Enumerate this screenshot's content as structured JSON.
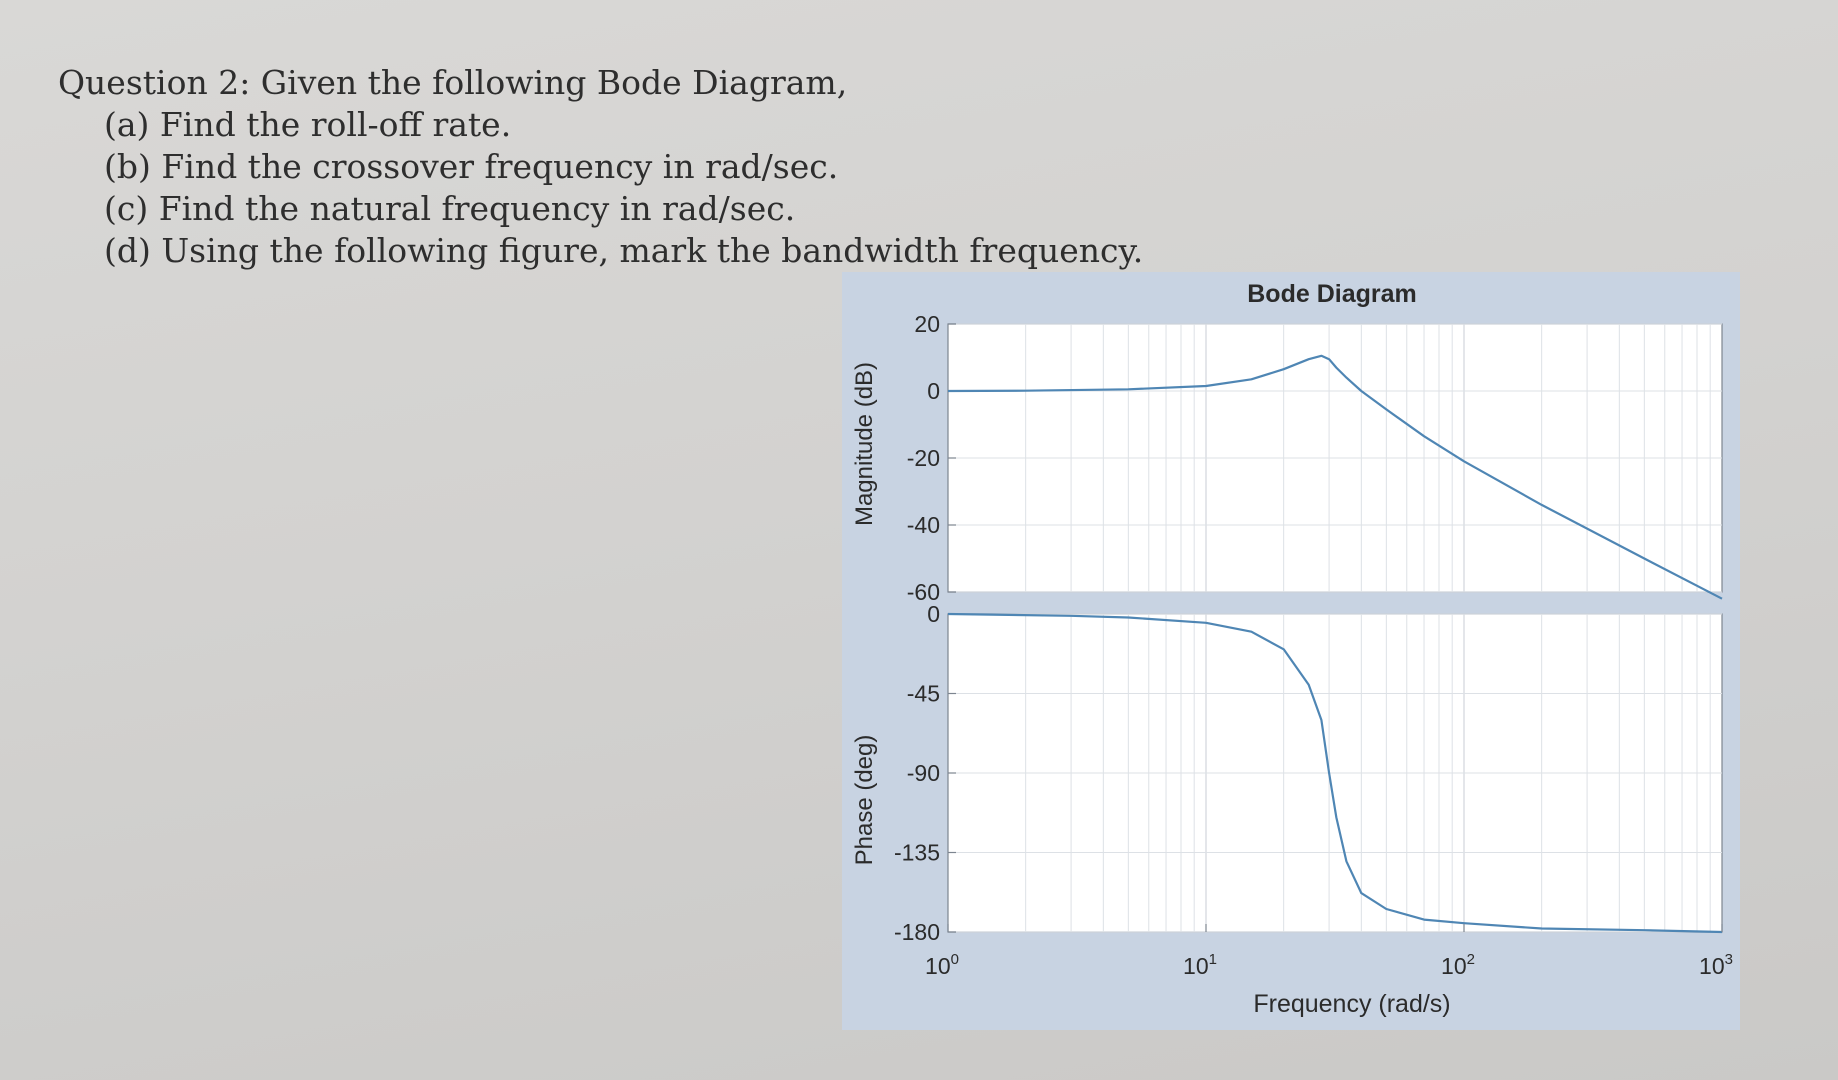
{
  "question": {
    "title": "Question 2: Given the following Bode Diagram,",
    "parts": [
      "(a) Find the roll-off rate.",
      "(b) Find the crossover frequency in rad/sec.",
      "(c) Find the natural frequency in rad/sec.",
      "(d) Using the following figure, mark the bandwidth frequency."
    ]
  },
  "chart_data": {
    "type": "line",
    "title": "Bode Diagram",
    "xlabel": "Frequency (rad/s)",
    "x_scale": "log",
    "xlim": [
      1,
      1000
    ],
    "x_ticks": [
      {
        "value": 1,
        "base": "10",
        "exp": "0"
      },
      {
        "value": 10,
        "base": "10",
        "exp": "1"
      },
      {
        "value": 100,
        "base": "10",
        "exp": "2"
      },
      {
        "value": 1000,
        "base": "10",
        "exp": "3"
      }
    ],
    "grid": true,
    "line_color": "#4f86b4",
    "panels": [
      {
        "name": "magnitude",
        "ylabel": "Magnitude (dB)",
        "ylim": [
          -60,
          20
        ],
        "y_ticks": [
          "20",
          "0",
          "-20",
          "-40",
          "-60"
        ],
        "y_tick_values": [
          20,
          0,
          -20,
          -40,
          -60
        ],
        "series": [
          {
            "x": [
              1,
              2,
              5,
              10,
              15,
              20,
              25,
              28,
              30,
              32,
              35,
              40,
              50,
              70,
              100,
              200,
              500,
              1000
            ],
            "values": [
              0,
              0.1,
              0.5,
              1.5,
              3.5,
              6.5,
              9.5,
              10.5,
              9.5,
              7,
              4,
              0,
              -5.5,
              -13.5,
              -21,
              -34,
              -50,
              -62
            ]
          }
        ]
      },
      {
        "name": "phase",
        "ylabel": "Phase (deg)",
        "ylim": [
          -180,
          0
        ],
        "y_ticks": [
          "0",
          "-45",
          "-90",
          "-135",
          "-180"
        ],
        "y_tick_values": [
          0,
          -45,
          -90,
          -135,
          -180
        ],
        "series": [
          {
            "x": [
              1,
              3,
              5,
              10,
              15,
              20,
              25,
              28,
              30,
              32,
              35,
              40,
              50,
              70,
              100,
              200,
              500,
              1000
            ],
            "values": [
              0,
              -1,
              -2,
              -5,
              -10,
              -20,
              -40,
              -60,
              -90,
              -115,
              -140,
              -158,
              -167,
              -173,
              -175,
              -178,
              -179,
              -180
            ]
          }
        ]
      }
    ]
  }
}
